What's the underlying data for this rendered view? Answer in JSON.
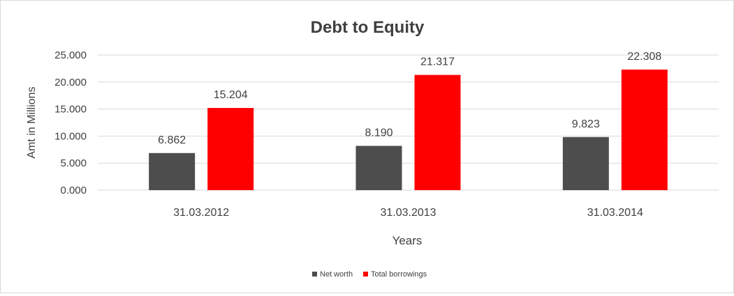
{
  "chart_data": {
    "type": "bar",
    "title": "Debt to Equity",
    "xlabel": "Years",
    "ylabel": "Amt in Millions",
    "categories": [
      "31.03.2012",
      "31.03.2013",
      "31.03.2014"
    ],
    "series": [
      {
        "name": "Net worth",
        "values": [
          6.862,
          8.19,
          9.823
        ],
        "labels": [
          "6.862",
          "8.190",
          "9.823"
        ],
        "color": "#4d4d4d"
      },
      {
        "name": "Total borrowings",
        "values": [
          15.204,
          21.317,
          22.308
        ],
        "labels": [
          "15.204",
          "21.317",
          "22.308"
        ],
        "color": "#ff0000"
      }
    ],
    "ylim": [
      0,
      25
    ],
    "yticks": [
      0,
      5,
      10,
      15,
      20,
      25
    ],
    "ytick_labels": [
      "0.000",
      "5.000",
      "10.000",
      "15.000",
      "20.000",
      "25.000"
    ],
    "grid": true,
    "gridline_color": "#d9d9d9",
    "legend_position": "bottom"
  }
}
